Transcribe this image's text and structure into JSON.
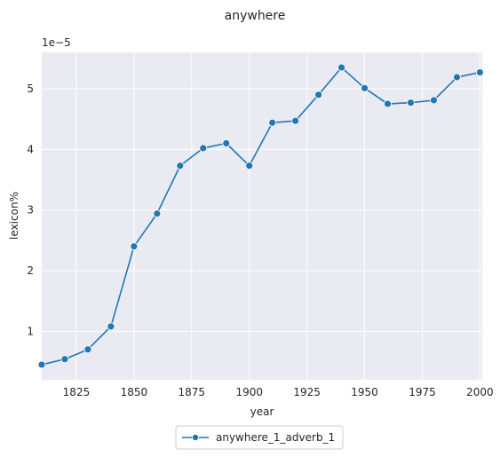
{
  "chart_data": {
    "type": "line",
    "title": "anywhere",
    "xlabel": "year",
    "ylabel": "lexicon%",
    "y_offset_label": "1e−5",
    "xlim": [
      1810,
      2001
    ],
    "ylim": [
      0.2,
      5.6
    ],
    "x_ticks": [
      1825,
      1850,
      1875,
      1900,
      1925,
      1950,
      1975,
      2000
    ],
    "y_ticks": [
      1,
      2,
      3,
      4,
      5
    ],
    "grid": true,
    "legend_position": "bottom-center",
    "series": [
      {
        "name": "anywhere_1_adverb_1",
        "color": "#1f77b4",
        "x": [
          1810,
          1820,
          1830,
          1840,
          1850,
          1860,
          1870,
          1880,
          1890,
          1900,
          1910,
          1920,
          1930,
          1940,
          1950,
          1960,
          1970,
          1980,
          1990,
          2000
        ],
        "y": [
          0.45,
          0.54,
          0.7,
          1.08,
          2.4,
          2.94,
          3.73,
          4.02,
          4.1,
          3.73,
          4.44,
          4.47,
          4.9,
          5.35,
          5.01,
          4.75,
          4.77,
          4.81,
          5.19,
          5.27
        ]
      }
    ]
  }
}
